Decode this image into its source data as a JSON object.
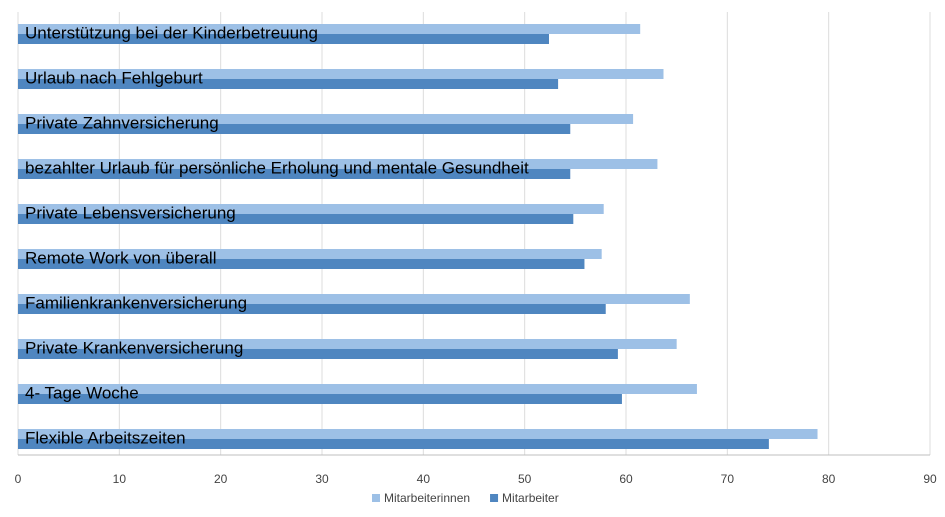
{
  "chart_data": {
    "type": "bar",
    "orientation": "horizontal",
    "categories": [
      "Unterstützung bei der Kinderbetreuung",
      "Urlaub nach Fehlgeburt",
      "Private Zahnversicherung",
      "bezahlter Urlaub für persönliche Erholung und mentale Gesundheit",
      "Private Lebensversicherung",
      "Remote Work von überall",
      "Familienkrankenversicherung",
      "Private Krankenversicherung",
      "4- Tage Woche",
      "Flexible Arbeitszeiten"
    ],
    "series": [
      {
        "name": "Mitarbeiterinnen",
        "color": "#9dc0e6",
        "values": [
          61.4,
          63.7,
          60.7,
          63.1,
          57.8,
          57.6,
          66.3,
          65.0,
          67.0,
          78.9
        ]
      },
      {
        "name": "Mitarbeiter",
        "color": "#4f86c0",
        "values": [
          52.4,
          53.3,
          54.5,
          54.5,
          54.8,
          55.9,
          58.0,
          59.2,
          59.6,
          74.1
        ]
      }
    ],
    "xlim": [
      0,
      90
    ],
    "xticks": [
      0,
      10,
      20,
      30,
      40,
      50,
      60,
      70,
      80,
      90
    ],
    "grid": true,
    "legend": "bottom"
  }
}
